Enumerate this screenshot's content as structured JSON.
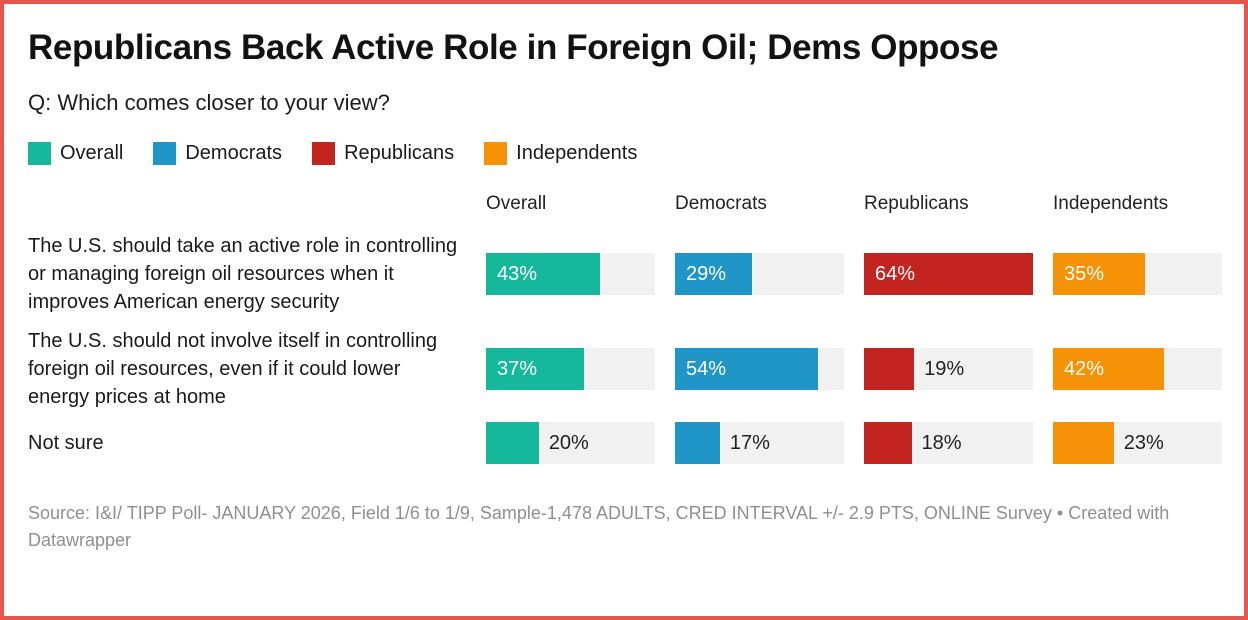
{
  "frame": {
    "border_color": "#e7564d",
    "background": "#ffffff"
  },
  "header": {
    "title": "Republicans Back Active Role in Foreign Oil; Dems Oppose",
    "subtitle": "Q: Which comes closer to your view?"
  },
  "legend": [
    {
      "label": "Overall",
      "color": "#15b89a"
    },
    {
      "label": "Democrats",
      "color": "#2095c8"
    },
    {
      "label": "Republicans",
      "color": "#c4241f"
    },
    {
      "label": "Independents",
      "color": "#f59205"
    }
  ],
  "chart_data": {
    "type": "bar",
    "orientation": "horizontal",
    "title": "Republicans Back Active Role in Foreign Oil; Dems Oppose",
    "subtitle": "Q: Which comes closer to your view?",
    "columns": [
      "Overall",
      "Democrats",
      "Republicans",
      "Independents"
    ],
    "colors": [
      "#15b89a",
      "#2095c8",
      "#c4241f",
      "#f59205"
    ],
    "track_color": "#f1f1f1",
    "scale_max": 64,
    "value_suffix": "%",
    "rows": [
      {
        "label": "The U.S. should take an active role in controlling or managing foreign oil resources when it improves American energy security",
        "values": [
          43,
          29,
          64,
          35
        ],
        "label_inside": [
          true,
          true,
          true,
          true
        ]
      },
      {
        "label": "The U.S. should not involve itself in controlling foreign oil resources, even if it could lower energy prices at home",
        "values": [
          37,
          54,
          19,
          42
        ],
        "label_inside": [
          true,
          true,
          false,
          true
        ]
      },
      {
        "label": "Not sure",
        "values": [
          20,
          17,
          18,
          23
        ],
        "label_inside": [
          false,
          false,
          false,
          false
        ]
      }
    ]
  },
  "footer": {
    "text": "Source: I&I/ TIPP Poll- JANUARY 2026, Field 1/6 to 1/9, Sample-1,478 ADULTS, CRED INTERVAL +/- 2.9 PTS, ONLINE Survey • Created with Datawrapper"
  }
}
